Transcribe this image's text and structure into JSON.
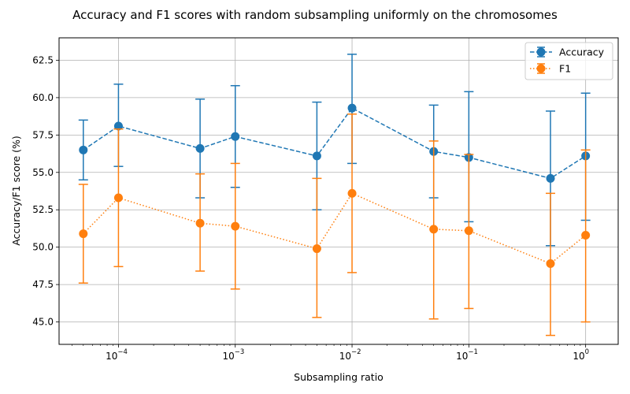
{
  "chart_data": {
    "type": "line",
    "title": "Accuracy and F1 scores with random subsampling uniformly on the chromosomes",
    "xlabel": "Subsampling ratio",
    "ylabel": "Accuracy/F1 score (%)",
    "x_scale": "log",
    "x": [
      5e-05,
      0.0001,
      0.0005,
      0.001,
      0.005,
      0.01,
      0.05,
      0.1,
      0.5,
      1
    ],
    "xlim": [
      3.1e-05,
      1.9
    ],
    "ylim": [
      43.5,
      64.0
    ],
    "x_ticks": [
      {
        "value": 0.0001,
        "base": "10",
        "exp": "−4"
      },
      {
        "value": 0.001,
        "base": "10",
        "exp": "−3"
      },
      {
        "value": 0.01,
        "base": "10",
        "exp": "−2"
      },
      {
        "value": 0.1,
        "base": "10",
        "exp": "−1"
      },
      {
        "value": 1,
        "base": "10",
        "exp": "0"
      }
    ],
    "y_ticks": [
      "45.0",
      "47.5",
      "50.0",
      "52.5",
      "55.0",
      "57.5",
      "60.0",
      "62.5"
    ],
    "grid": true,
    "legend_position": "top-right",
    "series": [
      {
        "name": "Accuracy",
        "color": "#1f77b4",
        "linestyle": "dashed",
        "values": [
          56.5,
          58.1,
          56.6,
          57.4,
          56.1,
          59.3,
          56.4,
          56.0,
          54.6,
          56.1
        ],
        "err_low": [
          54.5,
          55.4,
          53.3,
          54.0,
          52.5,
          55.6,
          53.3,
          51.7,
          50.1,
          51.8
        ],
        "err_high": [
          58.5,
          60.9,
          59.9,
          60.8,
          59.7,
          62.9,
          59.5,
          60.4,
          59.1,
          60.3
        ]
      },
      {
        "name": "F1",
        "color": "#ff7f0e",
        "linestyle": "dotted",
        "values": [
          50.9,
          53.3,
          51.6,
          51.4,
          49.9,
          53.6,
          51.2,
          51.1,
          48.9,
          50.8
        ],
        "err_low": [
          47.6,
          48.7,
          48.4,
          47.2,
          45.3,
          48.3,
          45.2,
          45.9,
          44.1,
          45.0
        ],
        "err_high": [
          54.2,
          57.9,
          54.9,
          55.6,
          54.6,
          58.9,
          57.1,
          56.2,
          53.6,
          56.5
        ]
      }
    ]
  }
}
